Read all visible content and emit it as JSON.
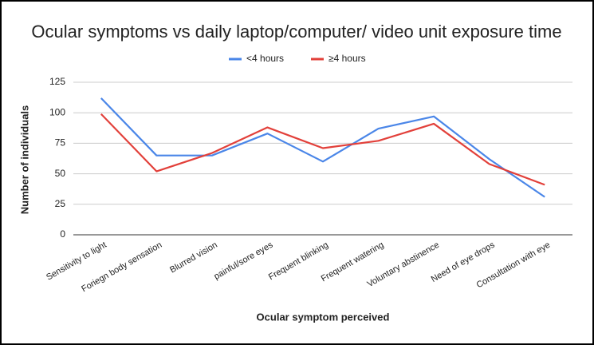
{
  "chart_data": {
    "type": "line",
    "title": "Ocular symptoms vs daily laptop/computer/ video unit exposure time",
    "x_label": "Ocular symptom perceived",
    "y_label": "Number of individuals",
    "categories": [
      "Sensitivity to light",
      "Foriegn body sensation",
      "Blurred vision",
      "painful/sore eyes",
      "Frequent blinking",
      "Frequent watering",
      "Voluntary abstinence",
      "Need of eye drops",
      "Consultation with eye"
    ],
    "series": [
      {
        "name": "<4 hours",
        "color": "#4a86e8",
        "values": [
          112,
          65,
          65,
          83,
          60,
          87,
          97,
          62,
          31
        ]
      },
      {
        "name": "≥4 hours",
        "color": "#e2403a",
        "values": [
          99,
          52,
          67,
          88,
          71,
          77,
          91,
          58,
          41
        ]
      }
    ],
    "ylim": [
      0,
      125
    ],
    "yticks": [
      0,
      25,
      50,
      75,
      100,
      125
    ],
    "grid": true
  }
}
